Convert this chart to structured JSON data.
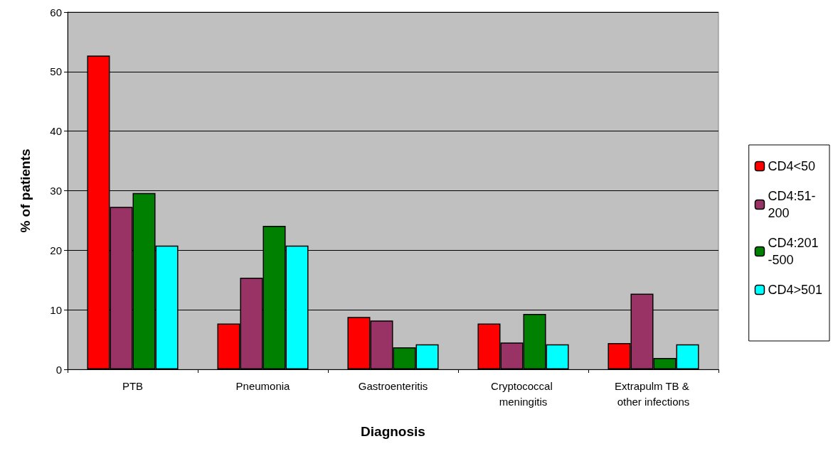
{
  "chart_data": {
    "type": "bar",
    "xlabel": "Diagnosis",
    "ylabel": "% of patients",
    "categories": [
      "PTB",
      "Pneumonia",
      "Gastroenteritis",
      "Cryptococcal meningitis",
      "Extrapulm TB & other infections"
    ],
    "series": [
      {
        "name": "CD4<50",
        "color": "#ff0000",
        "values": [
          52.7,
          7.7,
          8.8,
          7.7,
          4.4
        ]
      },
      {
        "name": "CD4:51-200",
        "color": "#993366",
        "values": [
          27.3,
          15.4,
          8.2,
          4.5,
          12.7
        ]
      },
      {
        "name": "CD4:201-500",
        "color": "#008000",
        "values": [
          29.6,
          24.1,
          3.7,
          9.3,
          1.9
        ]
      },
      {
        "name": "CD4>501",
        "color": "#00ffff",
        "values": [
          20.8,
          20.8,
          4.2,
          4.2,
          4.2
        ]
      }
    ],
    "ylim": [
      0,
      60
    ],
    "yticks": [
      0,
      10,
      20,
      30,
      40,
      50,
      60
    ],
    "grid": "y",
    "legend": "right"
  }
}
